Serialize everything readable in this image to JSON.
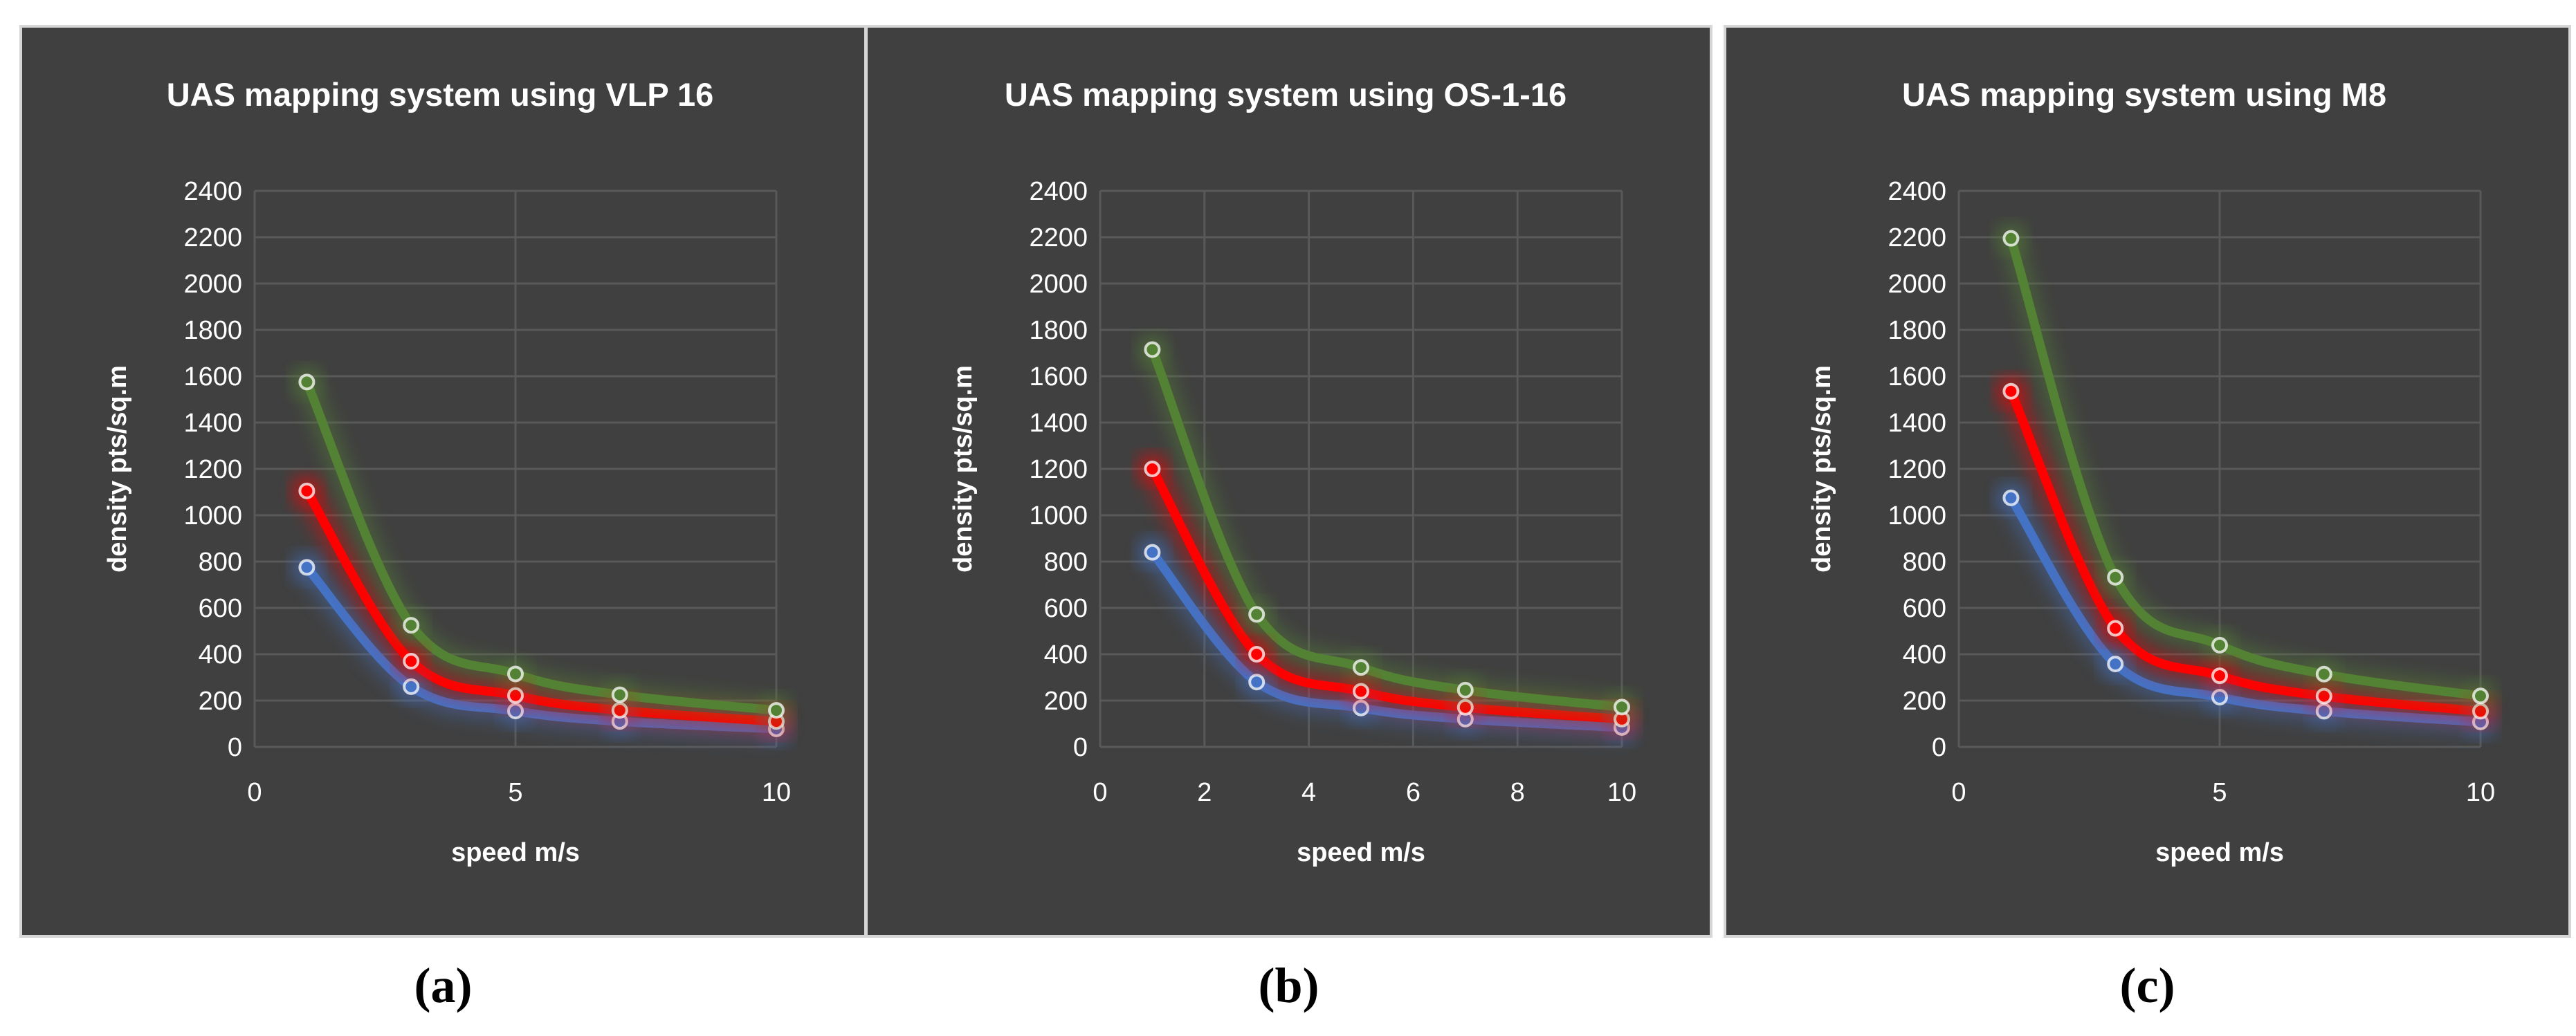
{
  "chart_data": [
    {
      "type": "line",
      "title": "UAS mapping system using VLP 16",
      "xlabel": "speed m/s",
      "ylabel": "density pts/sq.m",
      "xlim": [
        0,
        10
      ],
      "ylim": [
        0,
        2400
      ],
      "xticks": [
        0,
        5,
        10
      ],
      "yticks": [
        0,
        200,
        400,
        600,
        800,
        1000,
        1200,
        1400,
        1600,
        1800,
        2000,
        2200,
        2400
      ],
      "grid": true,
      "x": [
        1,
        3,
        5,
        7,
        10
      ],
      "series": [
        {
          "name": "blue",
          "color": "#4472c4",
          "values": [
            775,
            260,
            155,
            110,
            78
          ]
        },
        {
          "name": "red",
          "color": "#ff0000",
          "values": [
            1105,
            370,
            222,
            158,
            110
          ]
        },
        {
          "name": "green",
          "color": "#548235",
          "values": [
            1575,
            525,
            315,
            225,
            158
          ]
        }
      ],
      "caption": "(a)"
    },
    {
      "type": "line",
      "title": "UAS mapping system using OS-1-16",
      "xlabel": "speed m/s",
      "ylabel": "density pts/sq.m",
      "xlim": [
        0,
        10
      ],
      "ylim": [
        0,
        2400
      ],
      "xticks": [
        0,
        2,
        4,
        6,
        8,
        10
      ],
      "yticks": [
        0,
        200,
        400,
        600,
        800,
        1000,
        1200,
        1400,
        1600,
        1800,
        2000,
        2200,
        2400
      ],
      "grid": true,
      "x": [
        1,
        3,
        5,
        7,
        10
      ],
      "series": [
        {
          "name": "blue",
          "color": "#4472c4",
          "values": [
            840,
            280,
            168,
            120,
            84
          ]
        },
        {
          "name": "red",
          "color": "#ff0000",
          "values": [
            1200,
            400,
            240,
            171,
            120
          ]
        },
        {
          "name": "green",
          "color": "#548235",
          "values": [
            1715,
            572,
            343,
            245,
            172
          ]
        }
      ],
      "caption": "(b)"
    },
    {
      "type": "line",
      "title": "UAS mapping system using M8",
      "xlabel": "speed m/s",
      "ylabel": "density pts/sq.m",
      "xlim": [
        0,
        10
      ],
      "ylim": [
        0,
        2400
      ],
      "xticks": [
        0,
        5,
        10
      ],
      "yticks": [
        0,
        200,
        400,
        600,
        800,
        1000,
        1200,
        1400,
        1600,
        1800,
        2000,
        2200,
        2400
      ],
      "grid": true,
      "x": [
        1,
        3,
        5,
        7,
        10
      ],
      "series": [
        {
          "name": "blue",
          "color": "#4472c4",
          "values": [
            1075,
            358,
            215,
            154,
            108
          ]
        },
        {
          "name": "red",
          "color": "#ff0000",
          "values": [
            1535,
            512,
            307,
            219,
            154
          ]
        },
        {
          "name": "green",
          "color": "#548235",
          "values": [
            2195,
            732,
            439,
            314,
            220
          ]
        }
      ],
      "caption": "(c)"
    }
  ]
}
